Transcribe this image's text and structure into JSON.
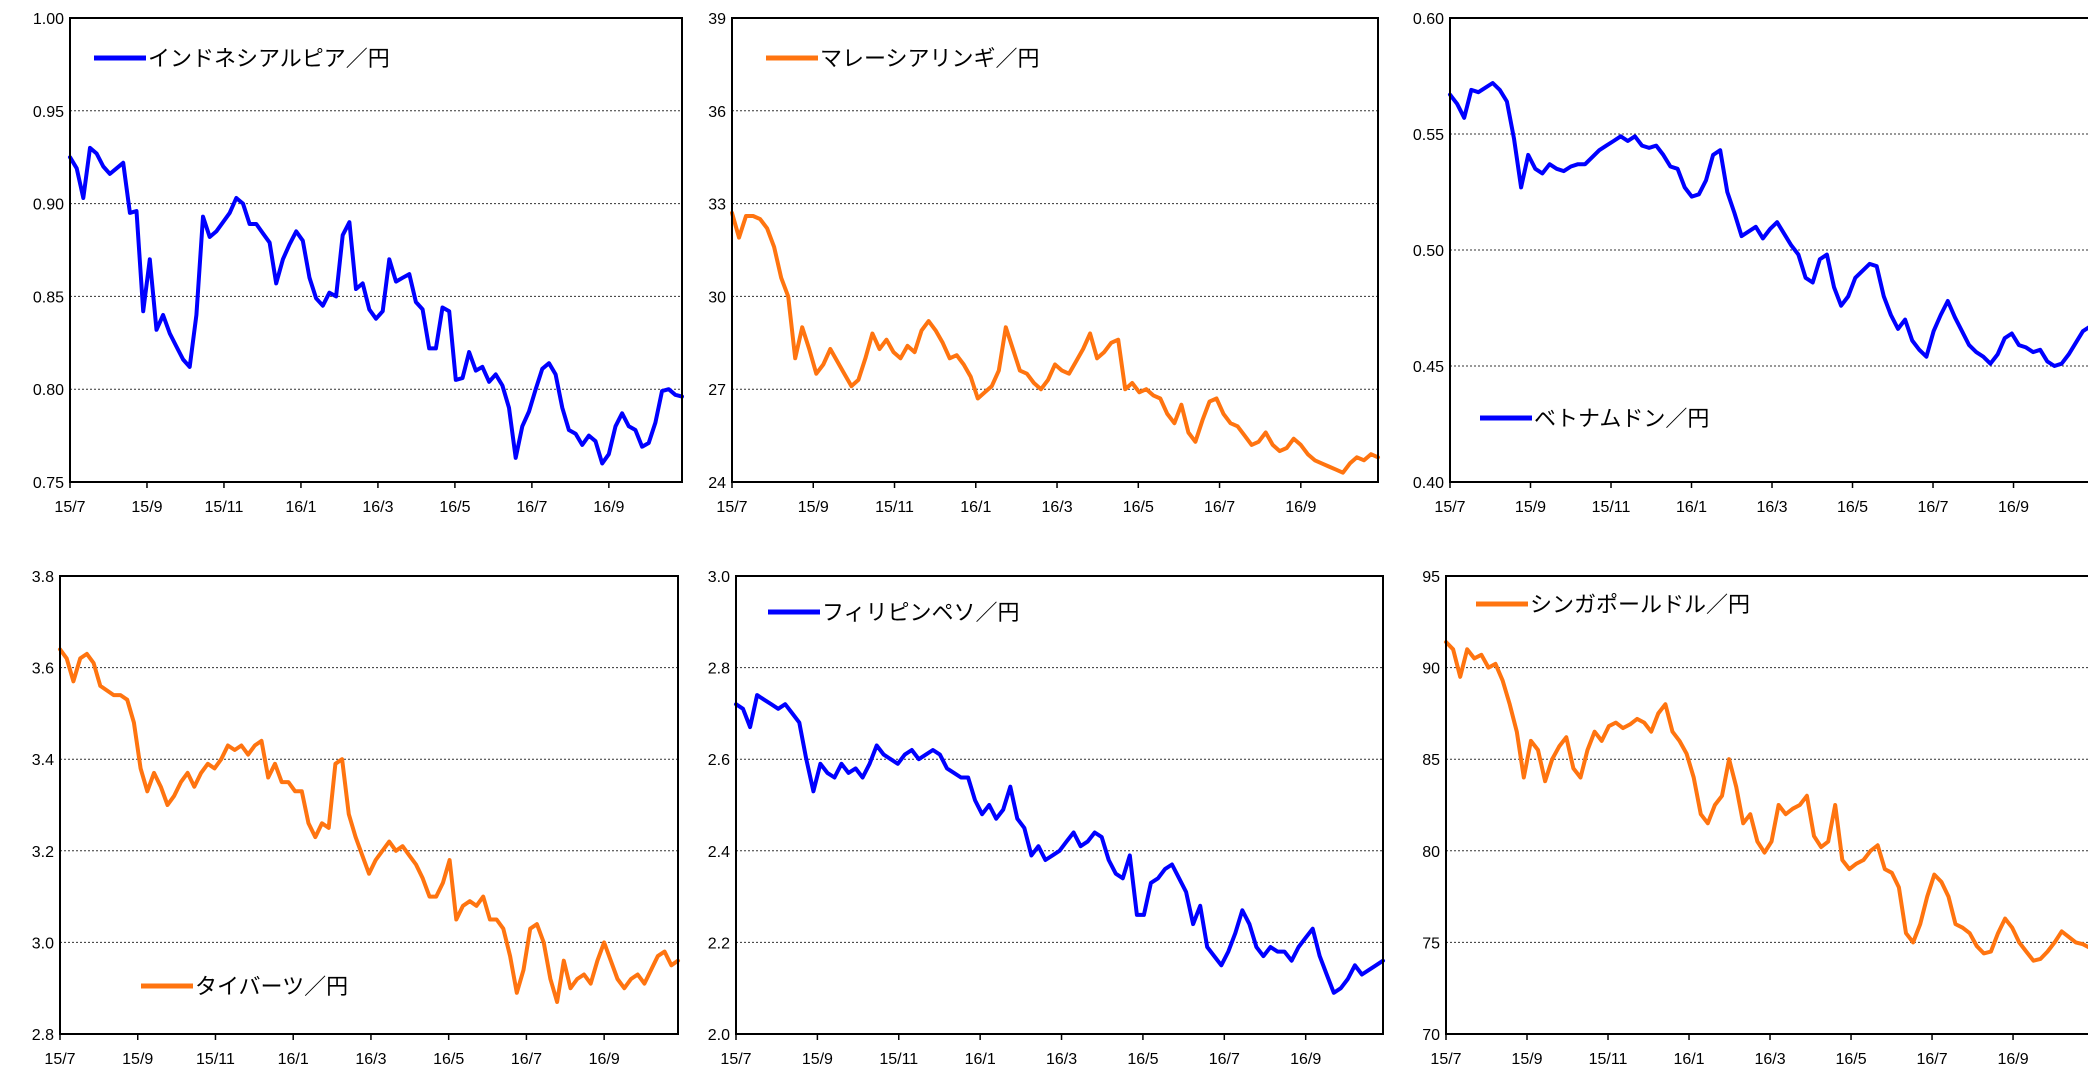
{
  "colors": {
    "blue": "#0000ff",
    "orange": "#ff7410",
    "grid": "#333333",
    "frame": "#000000"
  },
  "x_ticks": [
    "15/7",
    "15/9",
    "15/11",
    "16/1",
    "16/3",
    "16/5",
    "16/7",
    "16/9"
  ],
  "chart_data": [
    {
      "type": "line",
      "series": [
        {
          "name": "インドネシアルピア／円",
          "color": "#0000ff",
          "values": [
            0.925,
            0.919,
            0.903,
            0.93,
            0.927,
            0.92,
            0.916,
            0.919,
            0.922,
            0.895,
            0.896,
            0.842,
            0.87,
            0.832,
            0.84,
            0.83,
            0.823,
            0.816,
            0.812,
            0.84,
            0.893,
            0.882,
            0.885,
            0.89,
            0.895,
            0.903,
            0.9,
            0.889,
            0.889,
            0.884,
            0.879,
            0.857,
            0.87,
            0.878,
            0.885,
            0.88,
            0.86,
            0.849,
            0.845,
            0.852,
            0.85,
            0.883,
            0.89,
            0.854,
            0.857,
            0.843,
            0.838,
            0.842,
            0.87,
            0.858,
            0.86,
            0.862,
            0.847,
            0.843,
            0.822,
            0.822,
            0.844,
            0.842,
            0.805,
            0.806,
            0.82,
            0.81,
            0.812,
            0.804,
            0.808,
            0.802,
            0.79,
            0.763,
            0.78,
            0.788,
            0.8,
            0.811,
            0.814,
            0.808,
            0.79,
            0.778,
            0.776,
            0.77,
            0.775,
            0.772,
            0.76,
            0.765,
            0.78,
            0.787,
            0.78,
            0.778,
            0.769,
            0.771,
            0.782,
            0.799,
            0.8,
            0.797,
            0.796
          ]
        }
      ],
      "ylim": [
        0.75,
        1.0
      ],
      "yticks": [
        "0.75",
        "0.80",
        "0.85",
        "0.90",
        "0.95",
        "1.00"
      ],
      "grid": true,
      "legend_position": "top-left"
    },
    {
      "type": "line",
      "series": [
        {
          "name": "マレーシアリンギ／円",
          "color": "#ff7410",
          "values": [
            32.7,
            31.9,
            32.6,
            32.6,
            32.5,
            32.2,
            31.6,
            30.6,
            30.0,
            28.0,
            29.0,
            28.3,
            27.5,
            27.8,
            28.3,
            27.9,
            27.5,
            27.1,
            27.3,
            28.0,
            28.8,
            28.3,
            28.6,
            28.2,
            28.0,
            28.4,
            28.2,
            28.9,
            29.2,
            28.9,
            28.5,
            28.0,
            28.1,
            27.8,
            27.4,
            26.7,
            26.9,
            27.1,
            27.6,
            29.0,
            28.3,
            27.6,
            27.5,
            27.2,
            27.0,
            27.3,
            27.8,
            27.6,
            27.5,
            27.9,
            28.3,
            28.8,
            28.0,
            28.2,
            28.5,
            28.6,
            27.0,
            27.2,
            26.9,
            27.0,
            26.8,
            26.7,
            26.2,
            25.9,
            26.5,
            25.6,
            25.3,
            26.0,
            26.6,
            26.7,
            26.2,
            25.9,
            25.8,
            25.5,
            25.2,
            25.3,
            25.6,
            25.2,
            25.0,
            25.1,
            25.4,
            25.2,
            24.9,
            24.7,
            24.6,
            24.5,
            24.4,
            24.3,
            24.6,
            24.8,
            24.7,
            24.9,
            24.8
          ]
        }
      ],
      "ylim": [
        24,
        39
      ],
      "yticks": [
        "24",
        "27",
        "30",
        "33",
        "36",
        "39"
      ],
      "grid": true,
      "legend_position": "top-left"
    },
    {
      "type": "line",
      "series": [
        {
          "name": "ベトナムドン／円",
          "color": "#0000ff",
          "values": [
            0.567,
            0.563,
            0.557,
            0.569,
            0.568,
            0.57,
            0.572,
            0.569,
            0.564,
            0.548,
            0.527,
            0.541,
            0.535,
            0.533,
            0.537,
            0.535,
            0.534,
            0.536,
            0.537,
            0.537,
            0.54,
            0.543,
            0.545,
            0.547,
            0.549,
            0.547,
            0.549,
            0.545,
            0.544,
            0.545,
            0.541,
            0.536,
            0.535,
            0.527,
            0.523,
            0.524,
            0.53,
            0.541,
            0.543,
            0.525,
            0.516,
            0.506,
            0.508,
            0.51,
            0.505,
            0.509,
            0.512,
            0.507,
            0.502,
            0.498,
            0.488,
            0.486,
            0.496,
            0.498,
            0.484,
            0.476,
            0.48,
            0.488,
            0.491,
            0.494,
            0.493,
            0.48,
            0.472,
            0.466,
            0.47,
            0.461,
            0.457,
            0.454,
            0.465,
            0.472,
            0.478,
            0.471,
            0.465,
            0.459,
            0.456,
            0.454,
            0.451,
            0.455,
            0.462,
            0.464,
            0.459,
            0.458,
            0.456,
            0.457,
            0.452,
            0.45,
            0.451,
            0.455,
            0.46,
            0.465,
            0.467
          ]
        }
      ],
      "ylim": [
        0.4,
        0.6
      ],
      "yticks": [
        "0.40",
        "0.45",
        "0.50",
        "0.55",
        "0.60"
      ],
      "grid": true,
      "legend_position": "bottom-left"
    },
    {
      "type": "line",
      "series": [
        {
          "name": "タイバーツ／円",
          "color": "#ff7410",
          "values": [
            3.64,
            3.62,
            3.57,
            3.62,
            3.63,
            3.61,
            3.56,
            3.55,
            3.54,
            3.54,
            3.53,
            3.48,
            3.38,
            3.33,
            3.37,
            3.34,
            3.3,
            3.32,
            3.35,
            3.37,
            3.34,
            3.37,
            3.39,
            3.38,
            3.4,
            3.43,
            3.42,
            3.43,
            3.41,
            3.43,
            3.44,
            3.36,
            3.39,
            3.35,
            3.35,
            3.33,
            3.33,
            3.26,
            3.23,
            3.26,
            3.25,
            3.39,
            3.4,
            3.28,
            3.23,
            3.19,
            3.15,
            3.18,
            3.2,
            3.22,
            3.2,
            3.21,
            3.19,
            3.17,
            3.14,
            3.1,
            3.1,
            3.13,
            3.18,
            3.05,
            3.08,
            3.09,
            3.08,
            3.1,
            3.05,
            3.05,
            3.03,
            2.97,
            2.89,
            2.94,
            3.03,
            3.04,
            3.0,
            2.92,
            2.87,
            2.96,
            2.9,
            2.92,
            2.93,
            2.91,
            2.96,
            3.0,
            2.96,
            2.92,
            2.9,
            2.92,
            2.93,
            2.91,
            2.94,
            2.97,
            2.98,
            2.95,
            2.96
          ]
        }
      ],
      "ylim": [
        2.8,
        3.8
      ],
      "yticks": [
        "2.8",
        "3.0",
        "3.2",
        "3.4",
        "3.6",
        "3.8"
      ],
      "grid": true,
      "legend_position": "bottom-left"
    },
    {
      "type": "line",
      "series": [
        {
          "name": "フィリピンペソ／円",
          "color": "#0000ff",
          "values": [
            2.72,
            2.71,
            2.67,
            2.74,
            2.73,
            2.72,
            2.71,
            2.72,
            2.7,
            2.68,
            2.6,
            2.53,
            2.59,
            2.57,
            2.56,
            2.59,
            2.57,
            2.58,
            2.56,
            2.59,
            2.63,
            2.61,
            2.6,
            2.59,
            2.61,
            2.62,
            2.6,
            2.61,
            2.62,
            2.61,
            2.58,
            2.57,
            2.56,
            2.56,
            2.51,
            2.48,
            2.5,
            2.47,
            2.49,
            2.54,
            2.47,
            2.45,
            2.39,
            2.41,
            2.38,
            2.39,
            2.4,
            2.42,
            2.44,
            2.41,
            2.42,
            2.44,
            2.43,
            2.38,
            2.35,
            2.34,
            2.39,
            2.26,
            2.26,
            2.33,
            2.34,
            2.36,
            2.37,
            2.34,
            2.31,
            2.24,
            2.28,
            2.19,
            2.17,
            2.15,
            2.18,
            2.22,
            2.27,
            2.24,
            2.19,
            2.17,
            2.19,
            2.18,
            2.18,
            2.16,
            2.19,
            2.21,
            2.23,
            2.17,
            2.13,
            2.09,
            2.1,
            2.12,
            2.15,
            2.13,
            2.14,
            2.15,
            2.16
          ]
        }
      ],
      "ylim": [
        2.0,
        3.0
      ],
      "yticks": [
        "2.0",
        "2.2",
        "2.4",
        "2.6",
        "2.8",
        "3.0"
      ],
      "grid": true,
      "legend_position": "top-left"
    },
    {
      "type": "line",
      "series": [
        {
          "name": "シンガポールドル／円",
          "color": "#ff7410",
          "values": [
            91.4,
            91.0,
            89.5,
            91.0,
            90.5,
            90.7,
            90.0,
            90.2,
            89.3,
            88.0,
            86.5,
            84.0,
            86.0,
            85.5,
            83.8,
            85.0,
            85.7,
            86.2,
            84.5,
            84.0,
            85.5,
            86.5,
            86.0,
            86.8,
            87.0,
            86.7,
            86.9,
            87.2,
            87.0,
            86.5,
            87.5,
            88.0,
            86.5,
            86.0,
            85.3,
            84.0,
            82.0,
            81.5,
            82.5,
            83.0,
            85.0,
            83.5,
            81.5,
            82.0,
            80.5,
            79.9,
            80.5,
            82.5,
            82.0,
            82.3,
            82.5,
            83.0,
            80.8,
            80.2,
            80.5,
            82.5,
            79.5,
            79.0,
            79.3,
            79.5,
            80.0,
            80.3,
            79.0,
            78.8,
            78.0,
            75.5,
            75.0,
            76.0,
            77.5,
            78.7,
            78.3,
            77.5,
            76.0,
            75.8,
            75.5,
            74.8,
            74.4,
            74.5,
            75.5,
            76.3,
            75.8,
            75.0,
            74.5,
            74.0,
            74.1,
            74.5,
            75.0,
            75.6,
            75.3,
            75.0,
            74.9,
            74.7
          ]
        }
      ],
      "ylim": [
        70,
        95
      ],
      "yticks": [
        "70",
        "75",
        "80",
        "85",
        "90",
        "95"
      ],
      "grid": true,
      "legend_position": "top-left"
    }
  ]
}
